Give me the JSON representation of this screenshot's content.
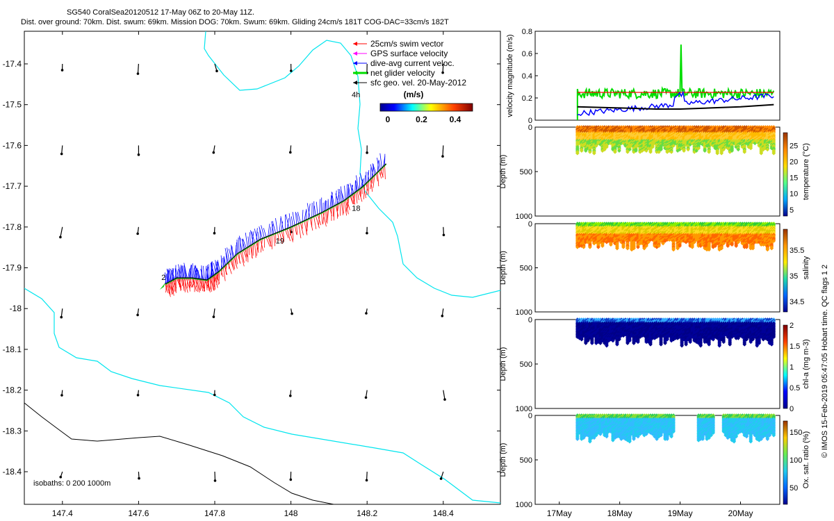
{
  "header": {
    "title_line1": "SG540 CoralSea20120512 17-May 06Z to 20-May 11Z.",
    "title_line2": "Dist. over ground: 70km. Dist. swum: 69km. Mission DOG: 70km. Swum: 69km. Gliding 24cm/s 181T COG-DAC=33cm/s 182T"
  },
  "credit": "© IMOS 15-Feb-2019 05:47:05 Hobart time. QC flags 1  2",
  "map": {
    "xticks": [
      "147.4",
      "147.6",
      "147.8",
      "148",
      "148.2",
      "148.4"
    ],
    "yticks": [
      "-17.4",
      "-17.5",
      "-17.6",
      "-17.7",
      "-17.8",
      "-17.9",
      "-18",
      "-18.1",
      "-18.2",
      "-18.3",
      "-18.4"
    ],
    "legend": {
      "items": [
        {
          "label": "25cm/s swim vector",
          "color": "#ff0000"
        },
        {
          "label": "GPS surface velocity",
          "color": "#ff00ff"
        },
        {
          "label": "dive-avg current veloc.",
          "color": "#0000ff"
        },
        {
          "label": "net glider velocity",
          "color": "#00dd00"
        },
        {
          "label": "sfc geo. vel. 20-May-2012",
          "color": "#000000"
        }
      ],
      "hours_label": "4h",
      "colorbar_unit": "(m/s)",
      "colorbar_ticks": [
        "0",
        "0.2",
        "0.4"
      ]
    },
    "track_day_labels": [
      "2",
      "18",
      "19"
    ],
    "isobaths_label": "isobaths: 0   200  1000m"
  },
  "panels": {
    "velocity": {
      "ylabel": "velocity magnitude (m/s)",
      "yticks": [
        "0",
        "0.2",
        "0.4",
        "0.6",
        "0.8"
      ]
    },
    "temperature": {
      "ylabel": "Depth (m)",
      "yticks": [
        "0",
        "500",
        "1000"
      ],
      "cbar_label": "temperature (°C)",
      "cbar_ticks": [
        "5",
        "10",
        "15",
        "20",
        "25"
      ]
    },
    "salinity": {
      "ylabel": "Depth (m)",
      "yticks": [
        "0",
        "500",
        "1000"
      ],
      "cbar_label": "salinity",
      "cbar_ticks": [
        "34.5",
        "35",
        "35.5"
      ]
    },
    "chla": {
      "ylabel": "Depth (m)",
      "yticks": [
        "0",
        "500",
        "1000"
      ],
      "cbar_label": "chl-a (mg m-3)",
      "cbar_ticks": [
        "0",
        "0.5",
        "1",
        "1.5",
        "2"
      ]
    },
    "oxygen": {
      "ylabel": "Depth (m)",
      "yticks": [
        "0",
        "500",
        "1000"
      ],
      "cbar_label": "Ox. sat. ratio (%)",
      "cbar_ticks": [
        "50",
        "100",
        "150"
      ]
    },
    "xticks": [
      "17May",
      "18May",
      "19May",
      "20May"
    ]
  },
  "chart_data": [
    {
      "type": "scatter",
      "title": "SG540 CoralSea20120512 17-May 06Z to 20-May 11Z.",
      "xlim": [
        147.3,
        148.55
      ],
      "ylim": [
        -18.48,
        -17.32
      ],
      "glider_track": {
        "lon": [
          147.67,
          147.7,
          147.74,
          147.78,
          147.81,
          147.86,
          147.92,
          148.0,
          148.08,
          148.14,
          148.19,
          148.25
        ],
        "lat": [
          -17.94,
          -17.925,
          -17.925,
          -17.93,
          -17.91,
          -17.865,
          -17.83,
          -17.8,
          -17.765,
          -17.735,
          -17.7,
          -17.645
        ]
      },
      "geostrophic_vectors_sites_lon": [
        147.4,
        147.6,
        147.8,
        148.0,
        148.2,
        148.4
      ],
      "geostrophic_vectors_sites_lat": [
        -17.4,
        -17.6,
        -17.8,
        -18.0,
        -18.2,
        -18.4
      ]
    },
    {
      "type": "line",
      "ylabel": "velocity magnitude (m/s)",
      "x": [
        "17May",
        "18May",
        "19May",
        "20May"
      ],
      "ylim": [
        0,
        0.8
      ],
      "series": [
        {
          "name": "net glider velocity",
          "color": "#00dd00",
          "x": [
            17.3,
            17.35,
            17.5,
            17.7,
            17.9,
            18.1,
            18.3,
            18.5,
            18.7,
            18.9,
            19.0,
            19.05,
            19.1,
            19.3,
            19.5,
            19.7,
            19.9,
            20.1,
            20.3,
            20.55
          ],
          "y": [
            0.25,
            0.3,
            0.27,
            0.3,
            0.28,
            0.3,
            0.27,
            0.3,
            0.29,
            0.28,
            0.68,
            0.27,
            0.28,
            0.27,
            0.26,
            0.22,
            0.25,
            0.2,
            0.24,
            0.22
          ]
        },
        {
          "name": "swim",
          "color": "#ff0000",
          "x": [
            17.3,
            20.55
          ],
          "y": [
            0.25,
            0.25
          ]
        },
        {
          "name": "dive-avg current veloc.",
          "color": "#0000ff",
          "x": [
            17.3,
            17.6,
            17.8,
            18.0,
            18.3,
            18.6,
            18.9,
            19.1,
            19.4,
            19.7,
            20.0,
            20.3,
            20.55
          ],
          "y": [
            0.08,
            0.05,
            0.1,
            0.07,
            0.14,
            0.12,
            0.18,
            0.1,
            0.16,
            0.19,
            0.24,
            0.3,
            0.25
          ]
        },
        {
          "name": "sfc geo",
          "color": "#000000",
          "x": [
            17.3,
            18.0,
            18.6,
            19.0,
            19.5,
            20.0,
            20.55
          ],
          "y": [
            0.12,
            0.11,
            0.1,
            0.1,
            0.11,
            0.12,
            0.14
          ]
        }
      ]
    }
  ]
}
